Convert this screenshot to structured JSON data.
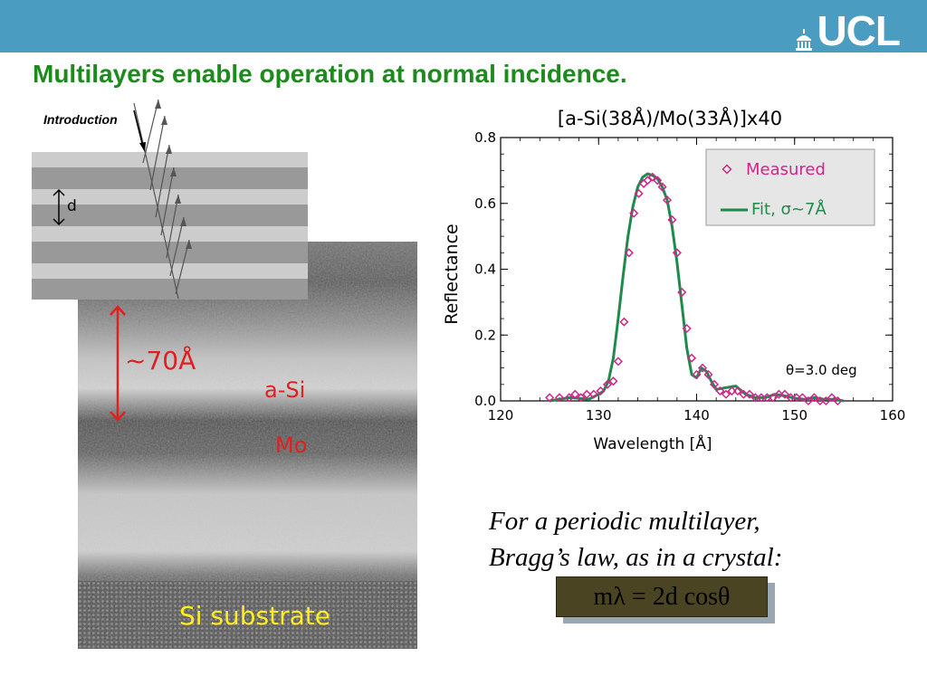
{
  "header": {
    "logo_text": "UCL"
  },
  "title": "Multilayers enable operation at normal incidence.",
  "diagram": {
    "introduction_label": "Introduction",
    "d_label": "d"
  },
  "tem": {
    "period_label": "~70Å",
    "asi_label": "a-Si",
    "mo_label": "Mo",
    "substrate_label": "Si substrate"
  },
  "chart_data": {
    "type": "line",
    "title": "[a-Si(38Å)/Mo(33Å)]x40",
    "xlabel": "Wavelength [Å]",
    "ylabel": "Reflectance",
    "xlim": [
      120,
      160
    ],
    "ylim": [
      0.0,
      0.8
    ],
    "xticks": [
      "120",
      "130",
      "140",
      "150",
      "160"
    ],
    "yticks": [
      "0.0",
      "0.2",
      "0.4",
      "0.6",
      "0.8"
    ],
    "annotation": "θ=3.0 deg",
    "legend_position": "top-right",
    "colors": {
      "measured": "#d0268a",
      "fit": "#1f8a4c"
    },
    "series": [
      {
        "name": "Measured",
        "marker": "diamond",
        "x": [
          125,
          126,
          127,
          127.6,
          128.2,
          128.8,
          129.5,
          130.2,
          130.9,
          131.5,
          132.0,
          132.6,
          133.1,
          133.6,
          134.1,
          134.6,
          135.0,
          135.5,
          136.0,
          136.5,
          137.0,
          137.5,
          138.0,
          138.5,
          139.0,
          139.5,
          140.0,
          140.6,
          141.2,
          141.8,
          142.4,
          143.0,
          143.6,
          144.2,
          144.8,
          145.4,
          146.0,
          146.6,
          147.2,
          147.8,
          148.4,
          149.0,
          149.6,
          150.2,
          150.8,
          151.4,
          152.0,
          152.6,
          153.2,
          153.8,
          154.4
        ],
        "y": [
          0.01,
          0.01,
          0.01,
          0.02,
          0.01,
          0.02,
          0.02,
          0.03,
          0.05,
          0.06,
          0.12,
          0.24,
          0.45,
          0.57,
          0.63,
          0.66,
          0.67,
          0.68,
          0.67,
          0.65,
          0.61,
          0.55,
          0.45,
          0.33,
          0.22,
          0.13,
          0.08,
          0.1,
          0.08,
          0.05,
          0.03,
          0.02,
          0.03,
          0.03,
          0.02,
          0.02,
          0.01,
          0.01,
          0.01,
          0.01,
          0.02,
          0.02,
          0.01,
          0.01,
          0.01,
          0.0,
          0.01,
          0.0,
          0.0,
          0.01,
          0.0
        ]
      },
      {
        "name": "Fit, σ~7Å",
        "marker": "none",
        "x": [
          125,
          126,
          127,
          128,
          129,
          130,
          130.5,
          131,
          131.5,
          132,
          132.5,
          133,
          133.5,
          134,
          134.5,
          135,
          135.5,
          136,
          136.5,
          137,
          137.5,
          138,
          138.5,
          139,
          139.5,
          140,
          140.5,
          141,
          141.5,
          142,
          143,
          144,
          145,
          146,
          147,
          148,
          149,
          150,
          151,
          152,
          153,
          154,
          155
        ],
        "y": [
          0.0,
          0.005,
          0.01,
          0.008,
          0.005,
          0.02,
          0.03,
          0.06,
          0.13,
          0.25,
          0.38,
          0.5,
          0.59,
          0.65,
          0.68,
          0.69,
          0.685,
          0.675,
          0.65,
          0.61,
          0.53,
          0.42,
          0.29,
          0.16,
          0.08,
          0.07,
          0.1,
          0.09,
          0.06,
          0.035,
          0.04,
          0.045,
          0.02,
          0.01,
          0.01,
          0.02,
          0.015,
          0.008,
          0.005,
          0.01,
          0.005,
          0.005,
          0.0
        ]
      }
    ]
  },
  "bragg": {
    "line1": "For a periodic multilayer,",
    "line2": "Bragg’s law, as in a crystal:",
    "formula": "mλ = 2d cosθ"
  }
}
